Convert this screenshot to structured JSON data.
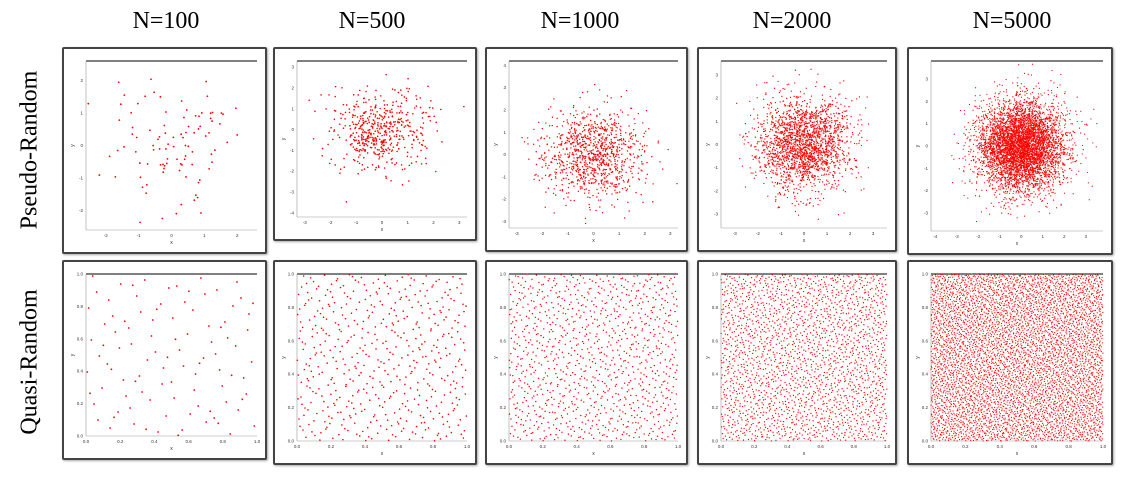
{
  "columns": [
    "N=100",
    "N=500",
    "N=1000",
    "N=2000",
    "N=5000"
  ],
  "rows": [
    "Pseudo-Random",
    "Quasi-Random"
  ],
  "point_color": "#ff0000",
  "chart_data": [
    {
      "type": "scatter",
      "row": "Pseudo-Random",
      "column": "N=100",
      "n": 100,
      "distribution": "gaussian",
      "xlabel": "x",
      "ylabel": "y",
      "xticks": [
        "-2",
        "-1",
        "0",
        "1",
        "2"
      ],
      "yticks": [
        "2",
        "1",
        "0",
        "-1",
        "-2"
      ],
      "xlim": [
        -2.6,
        2.6
      ],
      "ylim": [
        -2.6,
        2.6
      ]
    },
    {
      "type": "scatter",
      "row": "Pseudo-Random",
      "column": "N=500",
      "n": 500,
      "distribution": "gaussian",
      "xlabel": "x",
      "ylabel": "y",
      "xticks": [
        "-3",
        "-2",
        "-1",
        "0",
        "1",
        "2",
        "3"
      ],
      "yticks": [
        "3",
        "2",
        "1",
        "0",
        "-1",
        "-2",
        "-3",
        "-4"
      ],
      "xlim": [
        -3.3,
        3.3
      ],
      "ylim": [
        -4.2,
        3.3
      ]
    },
    {
      "type": "scatter",
      "row": "Pseudo-Random",
      "column": "N=1000",
      "n": 1000,
      "distribution": "gaussian",
      "xlabel": "x",
      "ylabel": "y",
      "xticks": [
        "-3",
        "-2",
        "-1",
        "0",
        "1",
        "2",
        "3"
      ],
      "yticks": [
        "4",
        "3",
        "2",
        "1",
        "0",
        "-1",
        "-2",
        "-3"
      ],
      "xlim": [
        -3.3,
        3.3
      ],
      "ylim": [
        -3.3,
        4.2
      ]
    },
    {
      "type": "scatter",
      "row": "Pseudo-Random",
      "column": "N=2000",
      "n": 2000,
      "distribution": "gaussian",
      "xlabel": "x",
      "ylabel": "y",
      "xticks": [
        "-3",
        "-2",
        "-1",
        "0",
        "1",
        "2",
        "3"
      ],
      "yticks": [
        "3",
        "2",
        "1",
        "0",
        "-1",
        "-2",
        "-3"
      ],
      "xlim": [
        -3.6,
        3.6
      ],
      "ylim": [
        -3.6,
        3.6
      ]
    },
    {
      "type": "scatter",
      "row": "Pseudo-Random",
      "column": "N=5000",
      "n": 5000,
      "distribution": "gaussian",
      "xlabel": "x",
      "ylabel": "y",
      "xticks": [
        "-4",
        "-3",
        "-2",
        "-1",
        "0",
        "1",
        "2",
        "3"
      ],
      "yticks": [
        "3",
        "2",
        "1",
        "0",
        "-1",
        "-2",
        "-3"
      ],
      "xlim": [
        -4.2,
        3.8
      ],
      "ylim": [
        -3.8,
        3.8
      ]
    },
    {
      "type": "scatter",
      "row": "Quasi-Random",
      "column": "N=100",
      "n": 100,
      "distribution": "uniform-low-discrepancy",
      "xlabel": "x",
      "ylabel": "y",
      "xticks": [
        "0.0",
        "0.2",
        "0.4",
        "0.6",
        "0.8",
        "1.0"
      ],
      "yticks": [
        "1.0",
        "0.8",
        "0.6",
        "0.4",
        "0.2",
        "0.0"
      ],
      "xlim": [
        0,
        1
      ],
      "ylim": [
        0,
        1
      ]
    },
    {
      "type": "scatter",
      "row": "Quasi-Random",
      "column": "N=500",
      "n": 500,
      "distribution": "uniform-low-discrepancy",
      "xlabel": "x",
      "ylabel": "y",
      "xticks": [
        "0.0",
        "0.2",
        "0.4",
        "0.6",
        "0.8",
        "1.0"
      ],
      "yticks": [
        "1.0",
        "0.8",
        "0.6",
        "0.4",
        "0.2",
        "0.0"
      ],
      "xlim": [
        0,
        1
      ],
      "ylim": [
        0,
        1
      ]
    },
    {
      "type": "scatter",
      "row": "Quasi-Random",
      "column": "N=1000",
      "n": 1000,
      "distribution": "uniform-low-discrepancy",
      "xlabel": "x",
      "ylabel": "y",
      "xticks": [
        "0.0",
        "0.2",
        "0.4",
        "0.6",
        "0.8",
        "1.0"
      ],
      "yticks": [
        "1.0",
        "0.8",
        "0.6",
        "0.4",
        "0.2",
        "0.0"
      ],
      "xlim": [
        0,
        1
      ],
      "ylim": [
        0,
        1
      ]
    },
    {
      "type": "scatter",
      "row": "Quasi-Random",
      "column": "N=2000",
      "n": 2000,
      "distribution": "uniform-low-discrepancy",
      "xlabel": "x",
      "ylabel": "y",
      "xticks": [
        "0.0",
        "0.2",
        "0.4",
        "0.6",
        "0.8",
        "1.0"
      ],
      "yticks": [
        "1.0",
        "0.8",
        "0.6",
        "0.4",
        "0.2",
        "0.0"
      ],
      "xlim": [
        0,
        1
      ],
      "ylim": [
        0,
        1
      ]
    },
    {
      "type": "scatter",
      "row": "Quasi-Random",
      "column": "N=5000",
      "n": 5000,
      "distribution": "uniform-low-discrepancy",
      "xlabel": "x",
      "ylabel": "y",
      "xticks": [
        "0.0",
        "0.2",
        "0.4",
        "0.6",
        "0.8",
        "1.0"
      ],
      "yticks": [
        "1.0",
        "0.8",
        "0.6",
        "0.4",
        "0.2",
        "0.0"
      ],
      "xlim": [
        0,
        1
      ],
      "ylim": [
        0,
        1
      ]
    }
  ]
}
